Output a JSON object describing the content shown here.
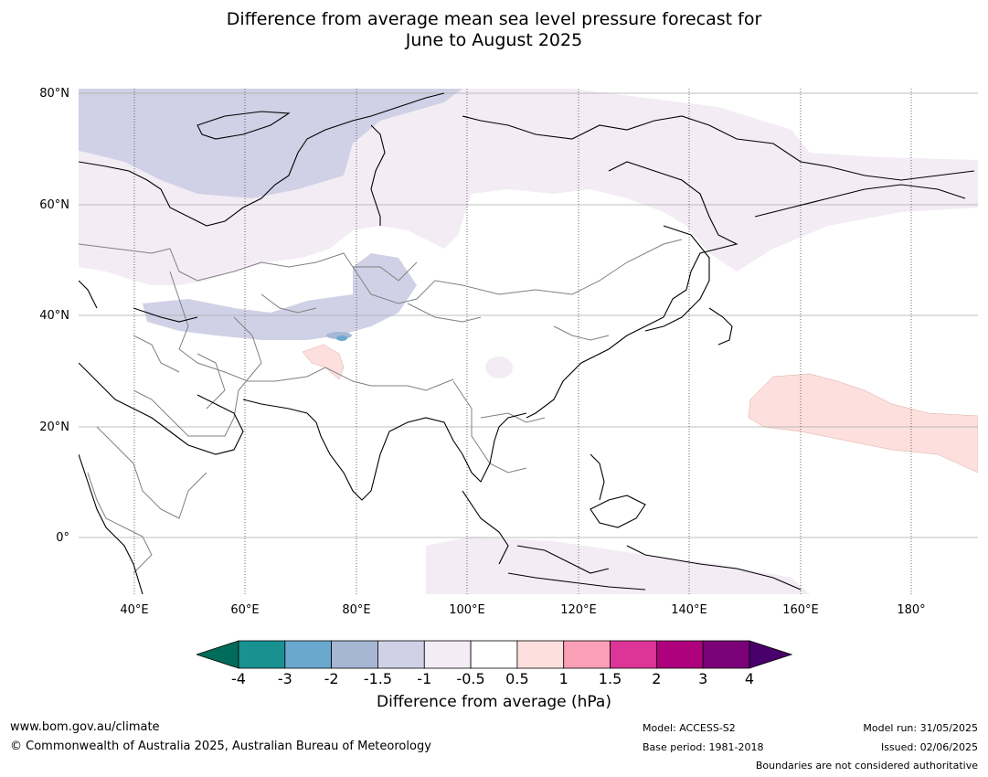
{
  "title": {
    "line1": "Difference from average mean sea level pressure forecast for",
    "line2": "June to August 2025"
  },
  "map": {
    "lat_labels": [
      "80°N",
      "60°N",
      "40°N",
      "20°N",
      "0°"
    ],
    "lon_labels": [
      "40°E",
      "60°E",
      "80°E",
      "100°E",
      "120°E",
      "140°E",
      "160°E",
      "180°"
    ],
    "lon_range": [
      30,
      192
    ],
    "lat_range": [
      -11,
      81
    ],
    "colors": {
      "neg_0_5_to_1": "#f3ecf5",
      "neg_1_to_1_5": "#d0d1e6",
      "neg_1_5_to_2": "#a6b7d4",
      "neg_2_to_3": "#6aa8cf",
      "pos_0_5_to_1": "#fde0dd",
      "coast": "#000000",
      "border": "#808080",
      "grid": "#aaaaaa"
    }
  },
  "colorbar": {
    "ticks": [
      "-4",
      "-3",
      "-2",
      "-1.5",
      "-1",
      "-0.5",
      "0.5",
      "1",
      "1.5",
      "2",
      "3",
      "4"
    ],
    "colors": [
      "#1a9191",
      "#6aa8cf",
      "#a6b7d4",
      "#d0d1e6",
      "#f3ecf5",
      "#ffffff",
      "#fde0dd",
      "#fa9fb5",
      "#dd3497",
      "#ae017e",
      "#7a0177"
    ],
    "extend_low_color": "#016c59",
    "extend_high_color": "#49006a",
    "label": "Difference from average (hPa)"
  },
  "footer": {
    "url": "www.bom.gov.au/climate",
    "copyright": "© Commonwealth of Australia 2025, Australian Bureau of Meteorology",
    "model": "Model: ACCESS-S2",
    "base_period": "Base period: 1981-2018",
    "model_run": "Model run: 31/05/2025",
    "issued": "Issued: 02/06/2025",
    "disclaimer": "Boundaries are not considered authoritative"
  }
}
